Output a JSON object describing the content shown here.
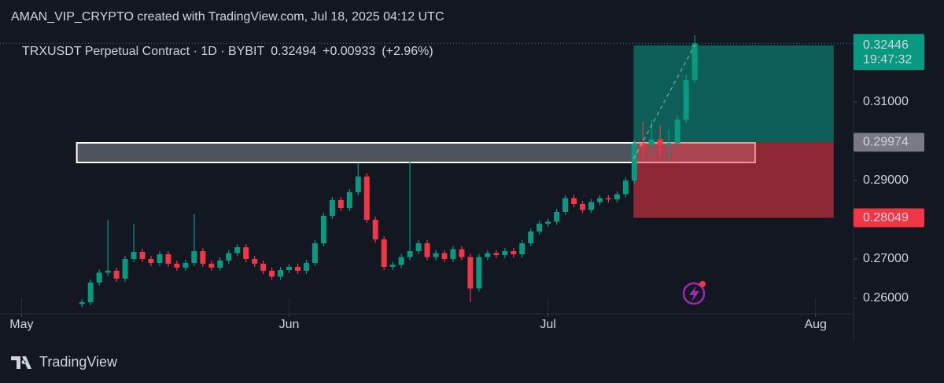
{
  "header": {
    "text": "AMAN_VIP_CRYPTO created with TradingView.com, Jul 18, 2025 04:12 UTC"
  },
  "chart_data": {
    "type": "candlestick",
    "title": "TRXUSDT Perpetual Contract · 1D · BYBIT",
    "change": {
      "value": 0.00933,
      "label": "+0.00933"
    },
    "change_pct": {
      "value": 2.96,
      "label": "(+2.96%)"
    },
    "colors": {
      "up": "#089981",
      "down": "#f23645"
    },
    "x": [
      7,
      8,
      9,
      10,
      11,
      12,
      13,
      14,
      15,
      16,
      17,
      18,
      19,
      20,
      21,
      22,
      23,
      24,
      25,
      26,
      27,
      28,
      29,
      30,
      31,
      32,
      33,
      34,
      35,
      36,
      37,
      38,
      39,
      40,
      41,
      42,
      43,
      44,
      45,
      46,
      47,
      48,
      49,
      50,
      51,
      52,
      53,
      54,
      55,
      56,
      57,
      58,
      59,
      60,
      61,
      62,
      63,
      64,
      65,
      66,
      67,
      68,
      69,
      70,
      71,
      72,
      73,
      74,
      75,
      76,
      77,
      78
    ],
    "open": [
      0.2585,
      0.259,
      0.264,
      0.2665,
      0.267,
      0.265,
      0.27,
      0.2718,
      0.27,
      0.269,
      0.2712,
      0.2688,
      0.2678,
      0.269,
      0.272,
      0.2688,
      0.2678,
      0.2696,
      0.2715,
      0.273,
      0.27,
      0.2688,
      0.267,
      0.2655,
      0.2672,
      0.268,
      0.267,
      0.269,
      0.274,
      0.281,
      0.285,
      0.283,
      0.287,
      0.291,
      0.28,
      0.275,
      0.268,
      0.2685,
      0.2705,
      0.272,
      0.274,
      0.2705,
      0.2715,
      0.27,
      0.2725,
      0.2705,
      0.2625,
      0.2705,
      0.2715,
      0.271,
      0.272,
      0.2712,
      0.274,
      0.277,
      0.279,
      0.2795,
      0.282,
      0.2855,
      0.284,
      0.2825,
      0.2845,
      0.2855,
      0.2852,
      0.2865,
      0.29,
      0.2995,
      0.299,
      0.3005,
      0.299,
      0.2995,
      0.3055,
      0.31561
    ],
    "high": [
      0.2598,
      0.2648,
      0.2673,
      0.28,
      0.2678,
      0.2708,
      0.279,
      0.2726,
      0.2708,
      0.272,
      0.272,
      0.2696,
      0.2698,
      0.2815,
      0.2728,
      0.2696,
      0.2704,
      0.2723,
      0.2738,
      0.2738,
      0.2708,
      0.2696,
      0.2678,
      0.268,
      0.2688,
      0.2688,
      0.2698,
      0.2748,
      0.2818,
      0.2858,
      0.2858,
      0.2878,
      0.2945,
      0.2918,
      0.2808,
      0.2758,
      0.2693,
      0.2713,
      0.295,
      0.2748,
      0.2748,
      0.2723,
      0.2723,
      0.2733,
      0.2733,
      0.2713,
      0.2713,
      0.2723,
      0.2723,
      0.2728,
      0.2728,
      0.2748,
      0.2778,
      0.2798,
      0.2803,
      0.2828,
      0.2863,
      0.2863,
      0.2848,
      0.2853,
      0.2863,
      0.2863,
      0.2873,
      0.2908,
      0.3003,
      0.305,
      0.3055,
      0.304,
      0.303,
      0.3065,
      0.317,
      0.327
    ],
    "low": [
      0.2577,
      0.2582,
      0.2632,
      0.2657,
      0.2642,
      0.2642,
      0.2692,
      0.2692,
      0.2682,
      0.2682,
      0.268,
      0.267,
      0.267,
      0.2682,
      0.268,
      0.267,
      0.267,
      0.2688,
      0.2707,
      0.2692,
      0.268,
      0.2662,
      0.2647,
      0.2647,
      0.2664,
      0.2662,
      0.2662,
      0.2682,
      0.2732,
      0.2802,
      0.2822,
      0.2822,
      0.2862,
      0.2792,
      0.2742,
      0.2672,
      0.2672,
      0.2677,
      0.2697,
      0.2712,
      0.2697,
      0.2697,
      0.2692,
      0.2692,
      0.2697,
      0.259,
      0.2617,
      0.2697,
      0.2702,
      0.2702,
      0.2704,
      0.2704,
      0.2732,
      0.2762,
      0.2782,
      0.2787,
      0.2812,
      0.2832,
      0.2817,
      0.2817,
      0.2837,
      0.2844,
      0.2844,
      0.2857,
      0.2892,
      0.2955,
      0.297,
      0.296,
      0.295,
      0.2987,
      0.3047,
      0.315
    ],
    "close": [
      0.259,
      0.264,
      0.2665,
      0.267,
      0.265,
      0.27,
      0.2718,
      0.27,
      0.269,
      0.2712,
      0.2688,
      0.2678,
      0.269,
      0.272,
      0.2688,
      0.2678,
      0.2696,
      0.2715,
      0.273,
      0.27,
      0.2688,
      0.267,
      0.2655,
      0.2672,
      0.268,
      0.267,
      0.269,
      0.274,
      0.281,
      0.285,
      0.283,
      0.287,
      0.291,
      0.28,
      0.275,
      0.268,
      0.2685,
      0.2705,
      0.272,
      0.274,
      0.2705,
      0.2715,
      0.27,
      0.2725,
      0.2705,
      0.2625,
      0.2705,
      0.2715,
      0.271,
      0.272,
      0.2712,
      0.274,
      0.277,
      0.279,
      0.2795,
      0.282,
      0.2855,
      0.284,
      0.2825,
      0.2845,
      0.2855,
      0.2852,
      0.2865,
      0.29,
      0.2995,
      0.299,
      0.3005,
      0.299,
      0.2995,
      0.3055,
      0.31561,
      0.32494
    ],
    "xlim": [
      -2.5,
      96.4
    ],
    "xticks": [
      {
        "value": 0,
        "label": "May"
      },
      {
        "value": 31,
        "label": "Jun"
      },
      {
        "value": 61,
        "label": "Jul"
      },
      {
        "value": 92,
        "label": "Aug"
      }
    ],
    "ylim": [
      0.256,
      0.3276
    ],
    "yticks": [
      {
        "value": 0.26,
        "label": "0.26000"
      },
      {
        "value": 0.27,
        "label": "0.27000"
      },
      {
        "value": 0.29,
        "label": "0.29000"
      },
      {
        "value": 0.31,
        "label": "0.31000"
      }
    ],
    "countdown": "19:47:32",
    "rectangle": {
      "x": [
        6.4,
        85.0
      ],
      "y": [
        0.2946,
        0.2996
      ]
    },
    "position": {
      "x": [
        70.9,
        94.1
      ],
      "target": 0.32446,
      "entry": 0.29974,
      "stop": 0.28049
    },
    "projection": {
      "x": [
        70.9,
        78
      ],
      "y": [
        0.2955,
        0.3245
      ]
    }
  },
  "footer": {
    "brand": "TradingView"
  }
}
